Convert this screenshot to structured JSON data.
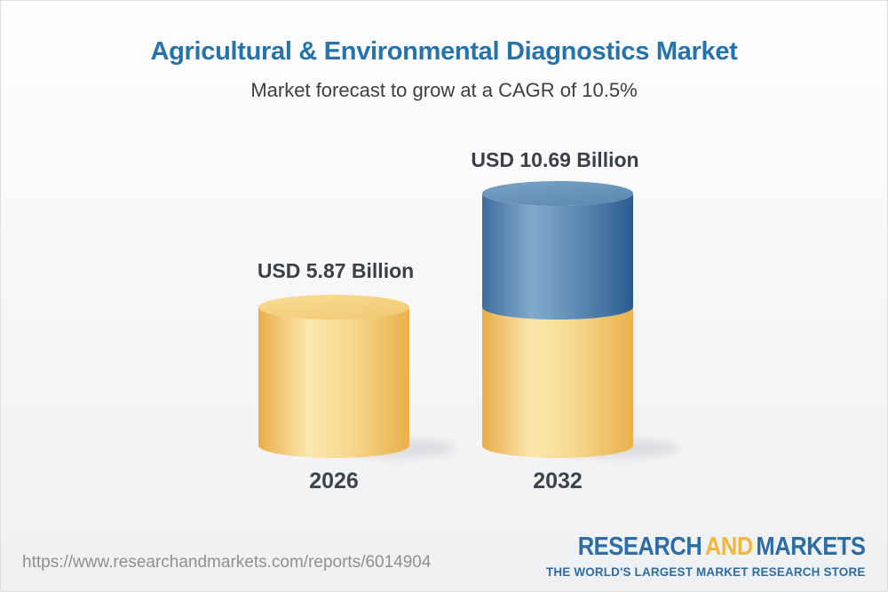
{
  "title": "Agricultural & Environmental Diagnostics Market",
  "subtitle": "Market forecast to grow at a CAGR of 10.5%",
  "chart_data": {
    "type": "bar",
    "variant": "3d-cylinder-column",
    "title": "Agricultural & Environmental Diagnostics Market",
    "subtitle": "Market forecast to grow at a CAGR of 10.5%",
    "categories": [
      "2026",
      "2032"
    ],
    "values": [
      5.87,
      10.69
    ],
    "value_labels": [
      "USD 5.87 Billion",
      "USD 10.69 Billion"
    ],
    "unit": "USD Billion",
    "cagr_percent": 10.5,
    "ylim": [
      0,
      10.69
    ],
    "grid": false,
    "legend": false,
    "axes_visible": false,
    "series_colors": {
      "base_column_yellow": "#f0bc5a",
      "growth_segment_blue": "#4878a8"
    },
    "notes": "2032 column is split: lower yellow segment equals 2026 value height, upper blue segment shows growth to 10.69"
  },
  "footer": {
    "url": "https://www.researchandmarkets.com/reports/6014904",
    "logo": {
      "research": "RESEARCH",
      "and": "AND",
      "markets": "MARKETS",
      "tagline": "THE WORLD'S LARGEST MARKET RESEARCH STORE"
    }
  },
  "colors": {
    "title_blue": "#2573ab",
    "subtitle_gray": "#3c4043",
    "label_dark": "#3b4045",
    "url_gray": "#8f9091",
    "logo_blue": "#2d6da5",
    "logo_gold": "#f2b640"
  }
}
